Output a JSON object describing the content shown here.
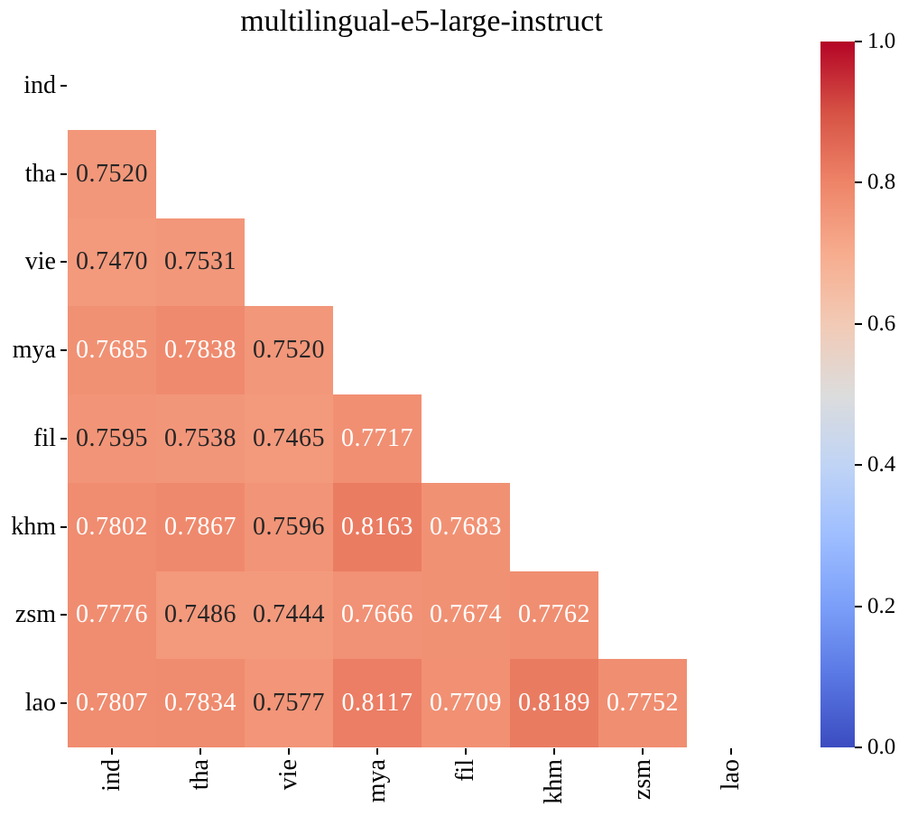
{
  "figure": {
    "background": "#ffffff"
  },
  "chart_data": {
    "type": "heatmap",
    "title": "multilingual-e5-large-instruct",
    "x_labels": [
      "ind",
      "tha",
      "vie",
      "mya",
      "fil",
      "khm",
      "zsm",
      "lao"
    ],
    "y_labels": [
      "ind",
      "tha",
      "vie",
      "mya",
      "fil",
      "khm",
      "zsm",
      "lao"
    ],
    "masked": "upper triangle and diagonal hidden",
    "values": [
      [],
      [
        "0.7520"
      ],
      [
        "0.7470",
        "0.7531"
      ],
      [
        "0.7685",
        "0.7838",
        "0.7520"
      ],
      [
        "0.7595",
        "0.7538",
        "0.7465",
        "0.7717"
      ],
      [
        "0.7802",
        "0.7867",
        "0.7596",
        "0.8163",
        "0.7683"
      ],
      [
        "0.7776",
        "0.7486",
        "0.7444",
        "0.7666",
        "0.7674",
        "0.7762"
      ],
      [
        "0.7807",
        "0.7834",
        "0.7577",
        "0.8117",
        "0.7709",
        "0.8189",
        "0.7752"
      ]
    ],
    "colorbar": {
      "min": 0.0,
      "max": 1.0,
      "ticks": [
        "0.0",
        "0.2",
        "0.4",
        "0.6",
        "0.8",
        "1.0"
      ],
      "position": "right"
    },
    "colormap": {
      "name": "coolwarm",
      "anchors": [
        "#3b4cc0",
        "#5977e3",
        "#7b9ff9",
        "#9ebeff",
        "#c0d4f5",
        "#dcdcdc",
        "#f2cab5",
        "#f7ac8e",
        "#ee8468",
        "#d65244",
        "#b40426"
      ]
    },
    "annotation": {
      "dark": "#262626",
      "light": "#ffffff",
      "white_text_min": 0.763
    },
    "grid": false,
    "legend": null
  }
}
